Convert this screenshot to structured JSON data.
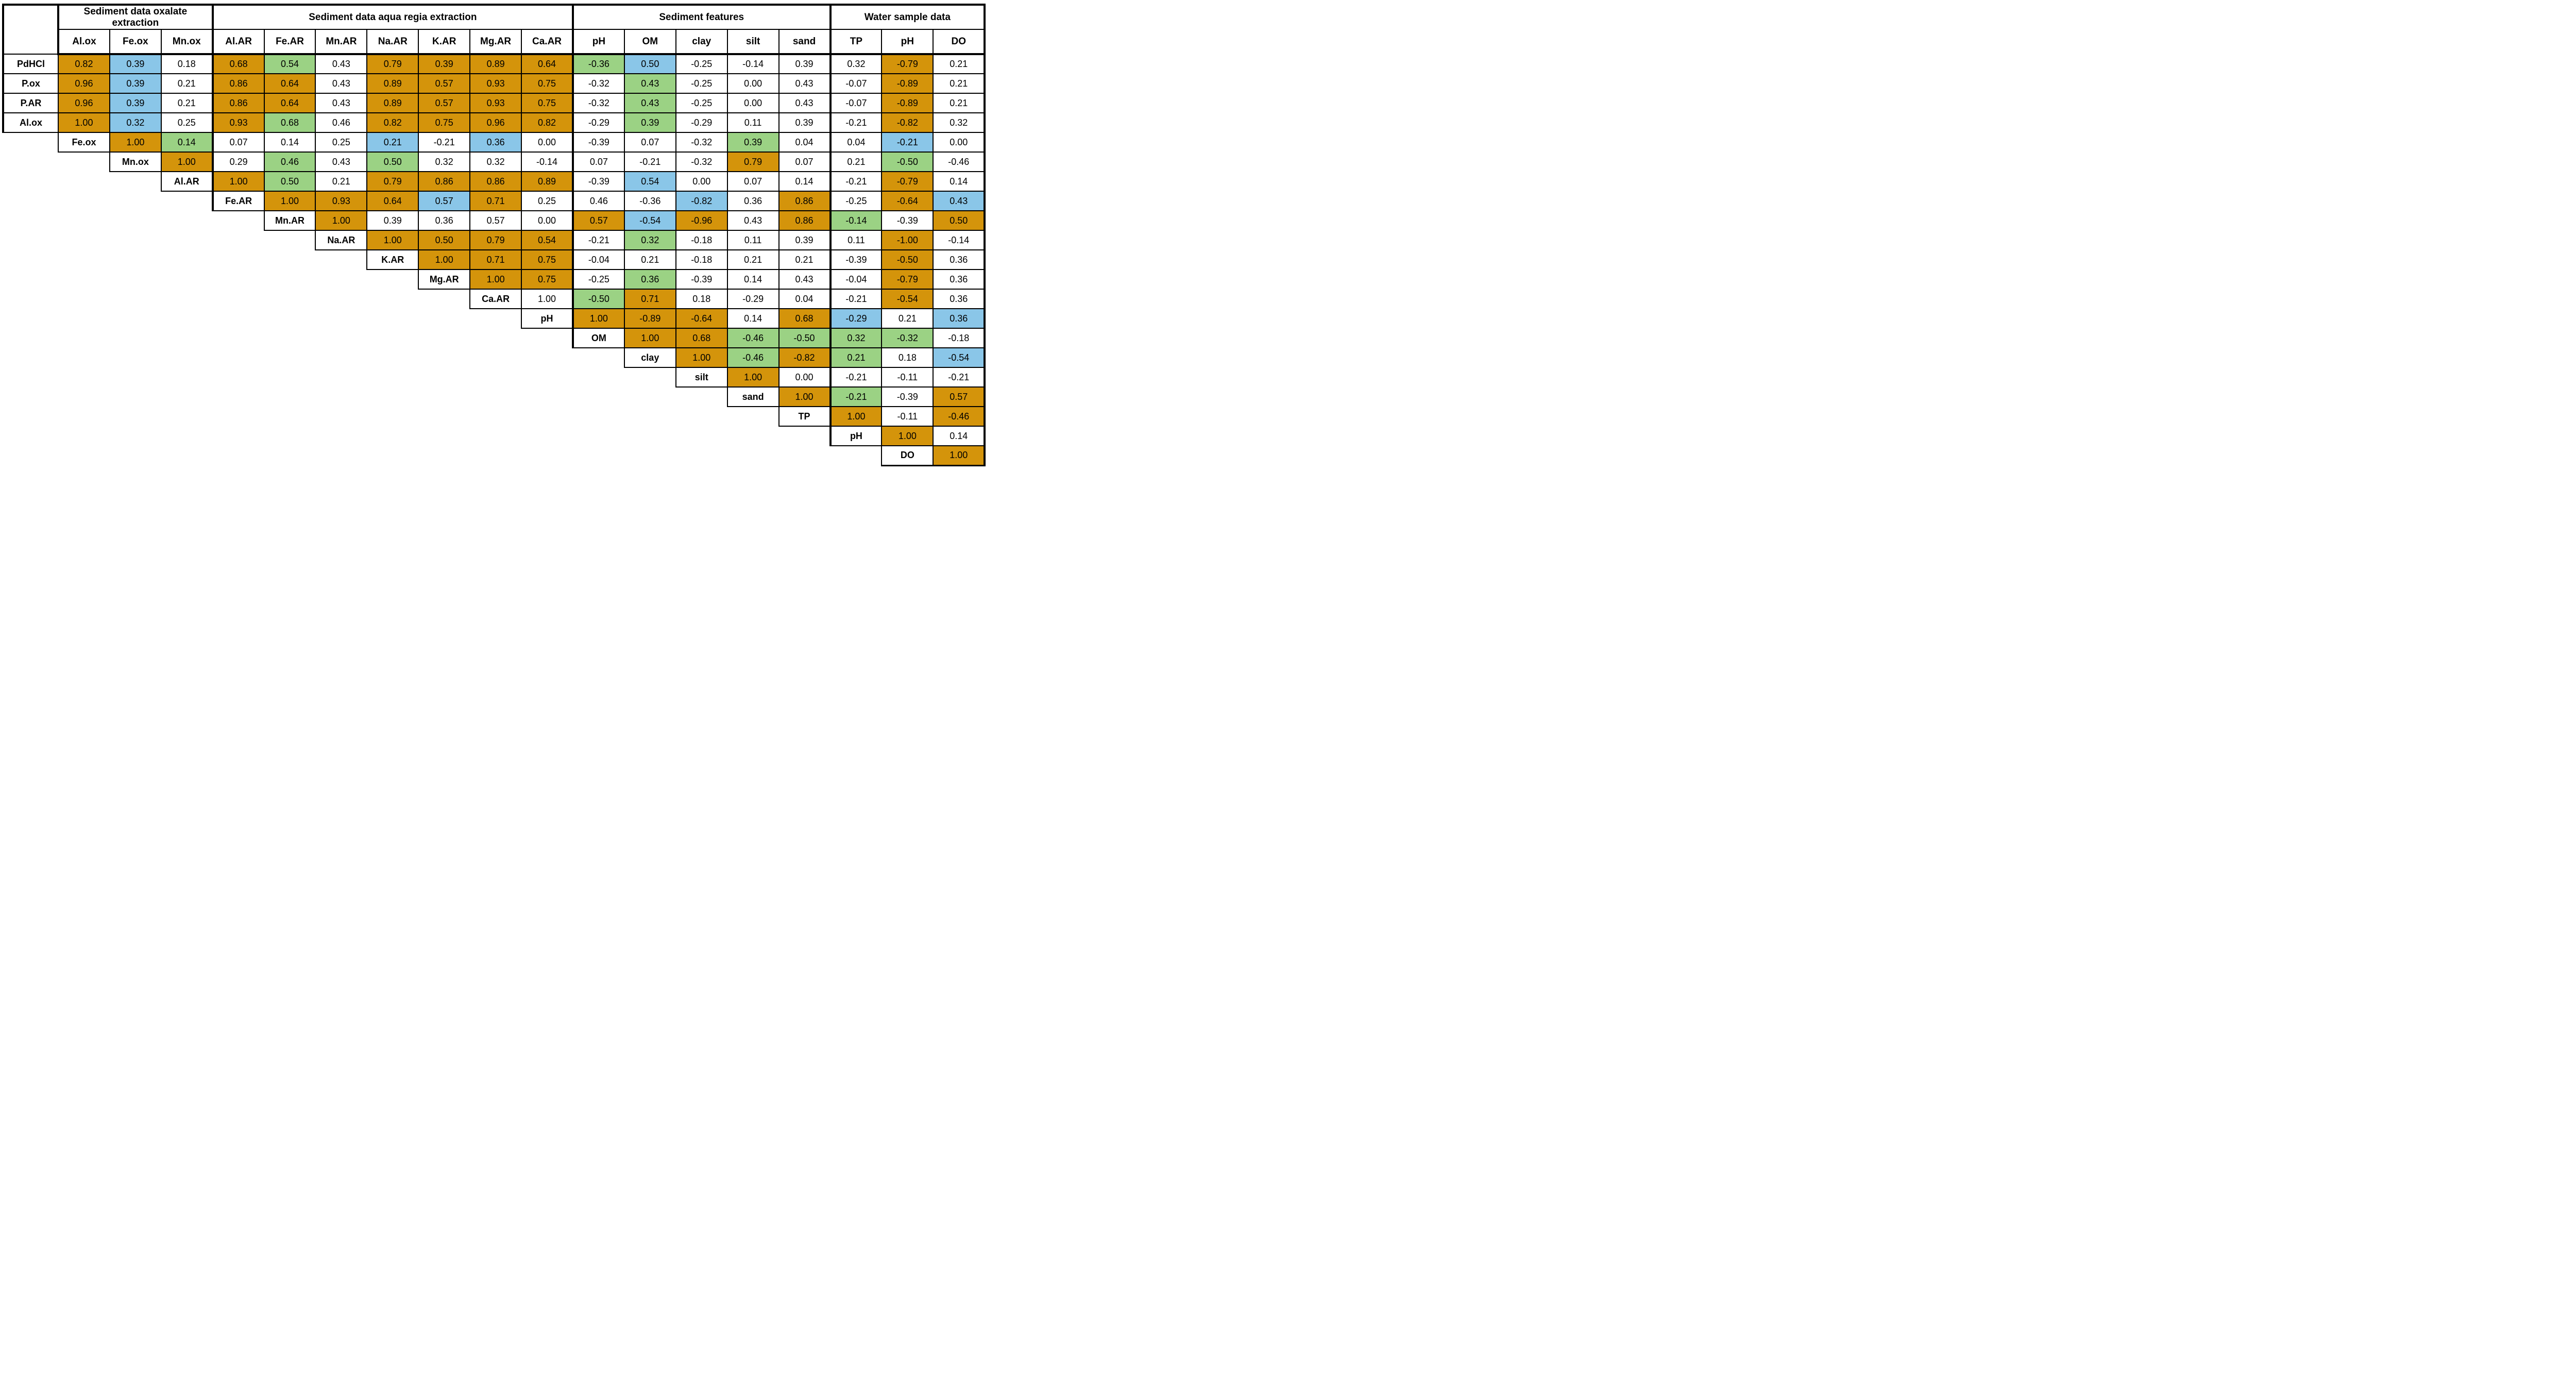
{
  "chart_data": {
    "type": "heatmap",
    "layout": "lower-triangle staircase correlation matrix",
    "grid_border_color": "#000000",
    "cell_fill_colors": {
      "o": "#D4940B",
      "b": "#8AC6E8",
      "g": "#9BD284",
      "w": "#FFFFFF"
    },
    "col_groups": [
      {
        "label": "Sediment data oxalate extraction",
        "span": 3
      },
      {
        "label": "Sediment data aqua regia extraction",
        "span": 7
      },
      {
        "label": "Sediment features",
        "span": 5
      },
      {
        "label": "Water sample data",
        "span": 3
      }
    ],
    "columns": [
      "Al.ox",
      "Fe.ox",
      "Mn.ox",
      "Al.AR",
      "Fe.AR",
      "Mn.AR",
      "Na.AR",
      "K.AR",
      "Mg.AR",
      "Ca.AR",
      "pH",
      "OM",
      "clay",
      "silt",
      "sand",
      "TP",
      "pH",
      "DO"
    ],
    "rows": [
      {
        "label": "PdHCl",
        "start": 0,
        "values": [
          "0.82",
          "0.39",
          "0.18",
          "0.68",
          "0.54",
          "0.43",
          "0.79",
          "0.39",
          "0.89",
          "0.64",
          "-0.36",
          "0.50",
          "-0.25",
          "-0.14",
          "0.39",
          "0.32",
          "-0.79",
          "0.21"
        ],
        "colors": [
          "o",
          "b",
          "w",
          "o",
          "g",
          "w",
          "o",
          "o",
          "o",
          "o",
          "g",
          "b",
          "w",
          "w",
          "w",
          "w",
          "o",
          "w"
        ]
      },
      {
        "label": "P.ox",
        "start": 0,
        "values": [
          "0.96",
          "0.39",
          "0.21",
          "0.86",
          "0.64",
          "0.43",
          "0.89",
          "0.57",
          "0.93",
          "0.75",
          "-0.32",
          "0.43",
          "-0.25",
          "0.00",
          "0.43",
          "-0.07",
          "-0.89",
          "0.21"
        ],
        "colors": [
          "o",
          "b",
          "w",
          "o",
          "o",
          "w",
          "o",
          "o",
          "o",
          "o",
          "w",
          "g",
          "w",
          "w",
          "w",
          "w",
          "o",
          "w"
        ]
      },
      {
        "label": "P.AR",
        "start": 0,
        "values": [
          "0.96",
          "0.39",
          "0.21",
          "0.86",
          "0.64",
          "0.43",
          "0.89",
          "0.57",
          "0.93",
          "0.75",
          "-0.32",
          "0.43",
          "-0.25",
          "0.00",
          "0.43",
          "-0.07",
          "-0.89",
          "0.21"
        ],
        "colors": [
          "o",
          "b",
          "w",
          "o",
          "o",
          "w",
          "o",
          "o",
          "o",
          "o",
          "w",
          "g",
          "w",
          "w",
          "w",
          "w",
          "o",
          "w"
        ]
      },
      {
        "label": "Al.ox",
        "start": 0,
        "values": [
          "1.00",
          "0.32",
          "0.25",
          "0.93",
          "0.68",
          "0.46",
          "0.82",
          "0.75",
          "0.96",
          "0.82",
          "-0.29",
          "0.39",
          "-0.29",
          "0.11",
          "0.39",
          "-0.21",
          "-0.82",
          "0.32"
        ],
        "colors": [
          "o",
          "b",
          "w",
          "o",
          "g",
          "w",
          "o",
          "o",
          "o",
          "o",
          "w",
          "g",
          "w",
          "w",
          "w",
          "w",
          "o",
          "w"
        ]
      },
      {
        "label": "Fe.ox",
        "start": 1,
        "values": [
          "1.00",
          "0.14",
          "0.07",
          "0.14",
          "0.25",
          "0.21",
          "-0.21",
          "0.36",
          "0.00",
          "-0.39",
          "0.07",
          "-0.32",
          "0.39",
          "0.04",
          "0.04",
          "-0.21",
          "0.00"
        ],
        "colors": [
          "o",
          "g",
          "w",
          "w",
          "w",
          "b",
          "w",
          "b",
          "w",
          "w",
          "w",
          "w",
          "g",
          "w",
          "w",
          "b",
          "w"
        ]
      },
      {
        "label": "Mn.ox",
        "start": 2,
        "values": [
          "1.00",
          "0.29",
          "0.46",
          "0.43",
          "0.50",
          "0.32",
          "0.32",
          "-0.14",
          "0.07",
          "-0.21",
          "-0.32",
          "0.79",
          "0.07",
          "0.21",
          "-0.50",
          "-0.46"
        ],
        "colors": [
          "o",
          "w",
          "g",
          "w",
          "g",
          "w",
          "w",
          "w",
          "w",
          "w",
          "w",
          "o",
          "w",
          "w",
          "g",
          "w"
        ]
      },
      {
        "label": "Al.AR",
        "start": 3,
        "values": [
          "1.00",
          "0.50",
          "0.21",
          "0.79",
          "0.86",
          "0.86",
          "0.89",
          "-0.39",
          "0.54",
          "0.00",
          "0.07",
          "0.14",
          "-0.21",
          "-0.79",
          "0.14"
        ],
        "colors": [
          "o",
          "g",
          "w",
          "o",
          "o",
          "o",
          "o",
          "w",
          "b",
          "w",
          "w",
          "w",
          "w",
          "o",
          "w"
        ]
      },
      {
        "label": "Fe.AR",
        "start": 4,
        "values": [
          "1.00",
          "0.93",
          "0.64",
          "0.57",
          "0.71",
          "0.25",
          "0.46",
          "-0.36",
          "-0.82",
          "0.36",
          "0.86",
          "-0.25",
          "-0.64",
          "0.43"
        ],
        "colors": [
          "o",
          "o",
          "o",
          "b",
          "o",
          "w",
          "w",
          "w",
          "b",
          "w",
          "o",
          "w",
          "o",
          "b"
        ]
      },
      {
        "label": "Mn.AR",
        "start": 5,
        "values": [
          "1.00",
          "0.39",
          "0.36",
          "0.57",
          "0.00",
          "0.57",
          "-0.54",
          "-0.96",
          "0.43",
          "0.86",
          "-0.14",
          "-0.39",
          "0.50"
        ],
        "colors": [
          "o",
          "w",
          "w",
          "w",
          "w",
          "o",
          "b",
          "o",
          "w",
          "o",
          "g",
          "w",
          "o"
        ]
      },
      {
        "label": "Na.AR",
        "start": 6,
        "values": [
          "1.00",
          "0.50",
          "0.79",
          "0.54",
          "-0.21",
          "0.32",
          "-0.18",
          "0.11",
          "0.39",
          "0.11",
          "-1.00",
          "-0.14"
        ],
        "colors": [
          "o",
          "o",
          "o",
          "o",
          "w",
          "g",
          "w",
          "w",
          "w",
          "w",
          "o",
          "w"
        ]
      },
      {
        "label": "K.AR",
        "start": 7,
        "values": [
          "1.00",
          "0.71",
          "0.75",
          "-0.04",
          "0.21",
          "-0.18",
          "0.21",
          "0.21",
          "-0.39",
          "-0.50",
          "0.36"
        ],
        "colors": [
          "o",
          "o",
          "o",
          "w",
          "w",
          "w",
          "w",
          "w",
          "w",
          "o",
          "w"
        ]
      },
      {
        "label": "Mg.AR",
        "start": 8,
        "values": [
          "1.00",
          "0.75",
          "-0.25",
          "0.36",
          "-0.39",
          "0.14",
          "0.43",
          "-0.04",
          "-0.79",
          "0.36"
        ],
        "colors": [
          "o",
          "o",
          "w",
          "g",
          "w",
          "w",
          "w",
          "w",
          "o",
          "w"
        ]
      },
      {
        "label": "Ca.AR",
        "start": 9,
        "values": [
          "1.00",
          "-0.50",
          "0.71",
          "0.18",
          "-0.29",
          "0.04",
          "-0.21",
          "-0.54",
          "0.36"
        ],
        "colors": [
          "w",
          "g",
          "o",
          "w",
          "w",
          "w",
          "w",
          "o",
          "w"
        ]
      },
      {
        "label": "pH",
        "start": 10,
        "values": [
          "1.00",
          "-0.89",
          "-0.64",
          "0.14",
          "0.68",
          "-0.29",
          "0.21",
          "0.36"
        ],
        "colors": [
          "o",
          "o",
          "o",
          "w",
          "o",
          "b",
          "w",
          "b"
        ]
      },
      {
        "label": "OM",
        "start": 11,
        "values": [
          "1.00",
          "0.68",
          "-0.46",
          "-0.50",
          "0.32",
          "-0.32",
          "-0.18"
        ],
        "colors": [
          "o",
          "o",
          "g",
          "g",
          "g",
          "g",
          "w"
        ]
      },
      {
        "label": "clay",
        "start": 12,
        "values": [
          "1.00",
          "-0.46",
          "-0.82",
          "0.21",
          "0.18",
          "-0.54"
        ],
        "colors": [
          "o",
          "g",
          "o",
          "g",
          "w",
          "b"
        ]
      },
      {
        "label": "silt",
        "start": 13,
        "values": [
          "1.00",
          "0.00",
          "-0.21",
          "-0.11",
          "-0.21"
        ],
        "colors": [
          "o",
          "w",
          "w",
          "w",
          "w"
        ]
      },
      {
        "label": "sand",
        "start": 14,
        "values": [
          "1.00",
          "-0.21",
          "-0.39",
          "0.57"
        ],
        "colors": [
          "o",
          "g",
          "w",
          "o"
        ]
      },
      {
        "label": "TP",
        "start": 15,
        "values": [
          "1.00",
          "-0.11",
          "-0.46"
        ],
        "colors": [
          "o",
          "w",
          "o"
        ]
      },
      {
        "label": "pH",
        "start": 16,
        "values": [
          "1.00",
          "0.14"
        ],
        "colors": [
          "o",
          "w"
        ]
      },
      {
        "label": "DO",
        "start": 17,
        "values": [
          "1.00"
        ],
        "colors": [
          "o"
        ]
      }
    ]
  }
}
